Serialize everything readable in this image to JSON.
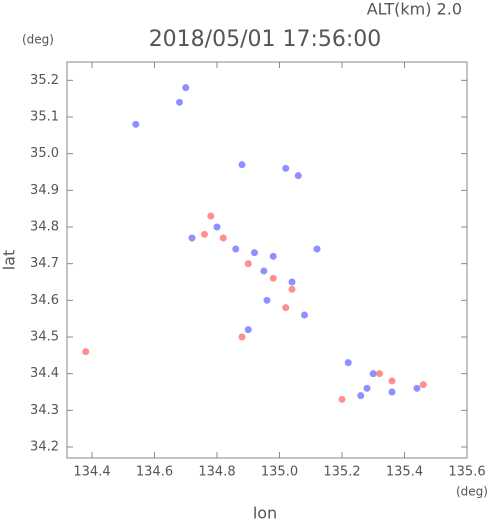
{
  "chart_data": {
    "type": "scatter",
    "title": "2018/05/01 17:56:00",
    "subtitle": "ALT(km) 2.0",
    "xlabel": "lon",
    "ylabel": "lat",
    "x_unit": "(deg)",
    "y_unit": "(deg)",
    "xlim": [
      134.32,
      135.6
    ],
    "ylim": [
      34.17,
      35.25
    ],
    "xticks": [
      134.4,
      134.6,
      134.8,
      {
        "value": 135,
        "label": "135.0"
      },
      135.2,
      135.4,
      135.6
    ],
    "yticks": [
      34.2,
      34.3,
      34.4,
      34.5,
      34.6,
      34.7,
      34.8,
      34.9,
      {
        "value": 35,
        "label": "35.0"
      },
      35.1,
      35.2
    ],
    "series": [
      {
        "color": "#7b7bff",
        "x": [
          134.54,
          134.68,
          134.7,
          134.88,
          135.02,
          135.06,
          134.72,
          134.8,
          134.86,
          134.92,
          134.98,
          135.04,
          134.96,
          135.12,
          134.9,
          135.22,
          135.3,
          135.28,
          135.36,
          135.26,
          135.44,
          134.95,
          135.08
        ],
        "values": [
          35.08,
          35.14,
          35.18,
          34.97,
          34.96,
          34.94,
          34.77,
          34.8,
          34.74,
          34.73,
          34.72,
          34.65,
          34.6,
          34.74,
          34.52,
          34.43,
          34.4,
          34.36,
          34.35,
          34.34,
          34.36,
          34.68,
          34.56
        ]
      },
      {
        "color": "#ff7b7b",
        "x": [
          134.38,
          134.78,
          134.82,
          134.9,
          134.98,
          135.04,
          134.88,
          135.2,
          135.32,
          135.46,
          135.36,
          134.76,
          135.02
        ],
        "values": [
          34.46,
          34.83,
          34.77,
          34.7,
          34.66,
          34.63,
          34.5,
          34.33,
          34.4,
          34.37,
          34.38,
          34.78,
          34.58
        ]
      }
    ]
  }
}
